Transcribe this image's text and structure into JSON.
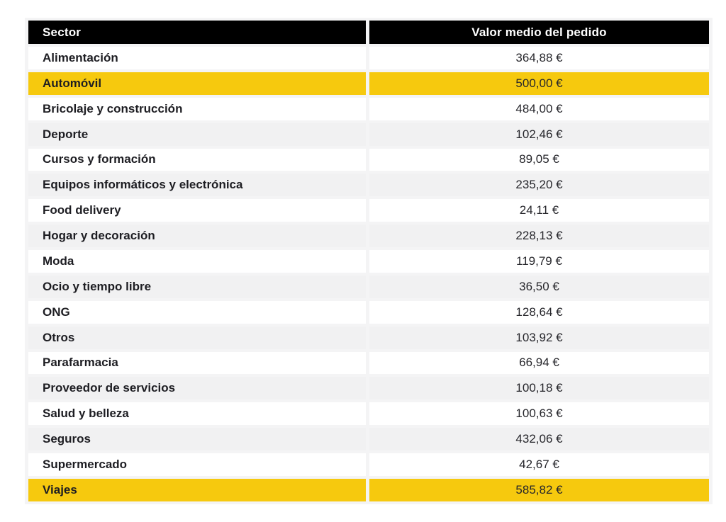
{
  "colors": {
    "highlight": "#f6c90e",
    "header_bg": "#000000",
    "header_text": "#ffffff",
    "alt_row": "#f1f1f2",
    "gap": "#f4f4f5",
    "label_text": "#1d1d22",
    "value_text": "#26262b"
  },
  "table": {
    "columns": [
      {
        "label": "Sector"
      },
      {
        "label": "Valor medio del pedido"
      }
    ],
    "rows": [
      {
        "sector": "Alimentación",
        "value": "364,88 €",
        "highlight": false
      },
      {
        "sector": "Automóvil",
        "value": "500,00 €",
        "highlight": true
      },
      {
        "sector": "Bricolaje y construcción",
        "value": "484,00 €",
        "highlight": false
      },
      {
        "sector": "Deporte",
        "value": "102,46 €",
        "highlight": false
      },
      {
        "sector": "Cursos y formación",
        "value": "89,05 €",
        "highlight": false
      },
      {
        "sector": "Equipos informáticos y electrónica",
        "value": "235,20 €",
        "highlight": false
      },
      {
        "sector": "Food delivery",
        "value": "24,11 €",
        "highlight": false
      },
      {
        "sector": "Hogar y decoración",
        "value": "228,13 €",
        "highlight": false
      },
      {
        "sector": "Moda",
        "value": "119,79 €",
        "highlight": false
      },
      {
        "sector": "Ocio y tiempo libre",
        "value": "36,50 €",
        "highlight": false
      },
      {
        "sector": "ONG",
        "value": "128,64 €",
        "highlight": false
      },
      {
        "sector": "Otros",
        "value": "103,92 €",
        "highlight": false
      },
      {
        "sector": "Parafarmacia",
        "value": "66,94 €",
        "highlight": false
      },
      {
        "sector": "Proveedor de servicios",
        "value": "100,18 €",
        "highlight": false
      },
      {
        "sector": "Salud y belleza",
        "value": "100,63 €",
        "highlight": false
      },
      {
        "sector": "Seguros",
        "value": "432,06 €",
        "highlight": false
      },
      {
        "sector": "Supermercado",
        "value": "42,67 €",
        "highlight": false
      },
      {
        "sector": "Viajes",
        "value": "585,82 €",
        "highlight": true
      }
    ]
  },
  "chart_data": {
    "type": "table",
    "title": "",
    "columns": [
      "Sector",
      "Valor medio del pedido"
    ],
    "categories": [
      "Alimentación",
      "Automóvil",
      "Bricolaje y construcción",
      "Deporte",
      "Cursos y formación",
      "Equipos informáticos y electrónica",
      "Food delivery",
      "Hogar y decoración",
      "Moda",
      "Ocio y tiempo libre",
      "ONG",
      "Otros",
      "Parafarmacia",
      "Proveedor de servicios",
      "Salud y belleza",
      "Seguros",
      "Supermercado",
      "Viajes"
    ],
    "values": [
      364.88,
      500.0,
      484.0,
      102.46,
      89.05,
      235.2,
      24.11,
      228.13,
      119.79,
      36.5,
      128.64,
      103.92,
      66.94,
      100.18,
      100.63,
      432.06,
      42.67,
      585.82
    ],
    "unit": "€",
    "decimal_separator": ",",
    "highlighted_rows": [
      "Automóvil",
      "Viajes"
    ],
    "layout": "two-column table, sector names left-aligned bold, values centered, black header row, alternating white/gray row stripes, yellow highlight on max-related rows"
  }
}
